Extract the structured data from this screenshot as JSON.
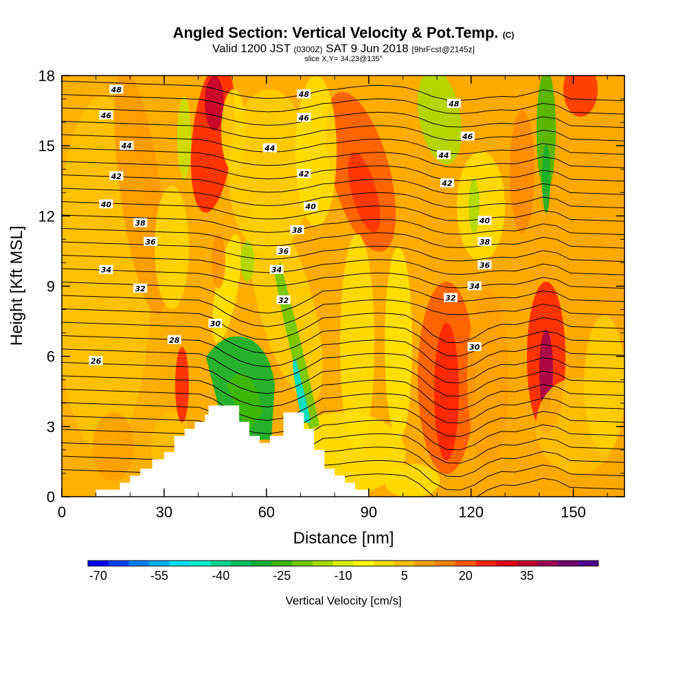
{
  "title": {
    "main": "Angled Section: Vertical Velocity & Pot.Temp.",
    "main_suffix": "(C)",
    "valid_prefix": "Valid 1200 JST",
    "valid_utc": "(0300Z)",
    "valid_date": "SAT 9 Jun 2018",
    "valid_fcst": "[9hrFcst@2145z]",
    "slice": "slice X,Y= 34,23@135°"
  },
  "chart_data": {
    "type": "contour-section",
    "xlabel": "Distance [nm]",
    "ylabel": "Height [Kft MSL]",
    "xlim": [
      0,
      165
    ],
    "ylim": [
      0,
      18
    ],
    "x_ticks": [
      0,
      30,
      60,
      90,
      120,
      150
    ],
    "x_tick_labels": [
      "0",
      "30",
      "60",
      "90",
      "120",
      "150"
    ],
    "y_ticks": [
      0,
      3,
      6,
      9,
      12,
      15,
      18
    ],
    "y_tick_labels": [
      "0",
      "3",
      "6",
      "9",
      "12",
      "15",
      "18"
    ],
    "terrain_kft": [
      [
        0,
        0
      ],
      [
        10,
        0
      ],
      [
        10,
        0.3
      ],
      [
        17,
        0.3
      ],
      [
        17,
        0.6
      ],
      [
        20,
        0.6
      ],
      [
        20,
        0.9
      ],
      [
        23,
        0.9
      ],
      [
        23,
        1.2
      ],
      [
        26.5,
        1.2
      ],
      [
        26.5,
        1.6
      ],
      [
        30,
        1.6
      ],
      [
        30,
        1.9
      ],
      [
        33,
        1.9
      ],
      [
        33,
        2.6
      ],
      [
        36,
        2.6
      ],
      [
        36,
        2.9
      ],
      [
        39,
        2.9
      ],
      [
        39,
        3.2
      ],
      [
        42,
        3.2
      ],
      [
        42,
        3.5
      ],
      [
        43,
        3.5
      ],
      [
        43,
        3.9
      ],
      [
        52,
        3.9
      ],
      [
        52,
        3.2
      ],
      [
        55,
        3.2
      ],
      [
        55,
        2.6
      ],
      [
        58,
        2.6
      ],
      [
        58,
        2.3
      ],
      [
        61,
        2.3
      ],
      [
        61,
        2.6
      ],
      [
        65,
        2.6
      ],
      [
        65,
        3.6
      ],
      [
        71,
        3.6
      ],
      [
        71,
        2.9
      ],
      [
        74,
        2.9
      ],
      [
        74,
        2.0
      ],
      [
        77,
        2.0
      ],
      [
        77,
        1.2
      ],
      [
        80,
        1.2
      ],
      [
        80,
        0.9
      ],
      [
        83,
        0.9
      ],
      [
        83,
        0.6
      ],
      [
        86,
        0.6
      ],
      [
        86,
        0.3
      ],
      [
        90,
        0.3
      ],
      [
        90,
        0
      ],
      [
        165,
        0
      ]
    ],
    "theta_contour_labels": [
      {
        "value": "48",
        "x": 16,
        "y": 17.4
      },
      {
        "value": "46",
        "x": 13,
        "y": 16.3
      },
      {
        "value": "44",
        "x": 19,
        "y": 15.0
      },
      {
        "value": "42",
        "x": 16,
        "y": 13.7
      },
      {
        "value": "40",
        "x": 13,
        "y": 12.5
      },
      {
        "value": "38",
        "x": 23,
        "y": 11.7
      },
      {
        "value": "36",
        "x": 26,
        "y": 10.9
      },
      {
        "value": "34",
        "x": 13,
        "y": 9.7
      },
      {
        "value": "32",
        "x": 23,
        "y": 8.9
      },
      {
        "value": "30",
        "x": 45,
        "y": 7.4
      },
      {
        "value": "28",
        "x": 33,
        "y": 6.7
      },
      {
        "value": "26",
        "x": 10,
        "y": 5.8
      },
      {
        "value": "48",
        "x": 71,
        "y": 17.2
      },
      {
        "value": "46",
        "x": 71,
        "y": 16.2
      },
      {
        "value": "44",
        "x": 61,
        "y": 14.9
      },
      {
        "value": "42",
        "x": 71,
        "y": 13.8
      },
      {
        "value": "40",
        "x": 73,
        "y": 12.4
      },
      {
        "value": "38",
        "x": 69,
        "y": 11.4
      },
      {
        "value": "36",
        "x": 65,
        "y": 10.5
      },
      {
        "value": "34",
        "x": 63,
        "y": 9.7
      },
      {
        "value": "32",
        "x": 65,
        "y": 8.4
      },
      {
        "value": "48",
        "x": 115,
        "y": 16.8
      },
      {
        "value": "46",
        "x": 119,
        "y": 15.4
      },
      {
        "value": "44",
        "x": 112,
        "y": 14.6
      },
      {
        "value": "42",
        "x": 113,
        "y": 13.4
      },
      {
        "value": "40",
        "x": 124,
        "y": 11.8
      },
      {
        "value": "38",
        "x": 124,
        "y": 10.9
      },
      {
        "value": "36",
        "x": 124,
        "y": 9.9
      },
      {
        "value": "34",
        "x": 121,
        "y": 9.0
      },
      {
        "value": "32",
        "x": 114,
        "y": 8.5
      },
      {
        "value": "30",
        "x": 121,
        "y": 6.4
      }
    ],
    "colorbar": {
      "title": "Vertical Velocity [cm/s]",
      "tick_labels": [
        "-70",
        "-55",
        "-40",
        "-25",
        "-10",
        "5",
        "20",
        "35"
      ],
      "colors": [
        "#0000ff",
        "#0040ff",
        "#0080ff",
        "#00b4ff",
        "#00e0ff",
        "#00f0c8",
        "#00d890",
        "#00c060",
        "#10b030",
        "#40b800",
        "#70c800",
        "#a8dc00",
        "#d8f000",
        "#ffff00",
        "#ffe000",
        "#ffc000",
        "#ffa000",
        "#ff8000",
        "#ff5800",
        "#ff2000",
        "#e00010",
        "#c00030",
        "#a00050",
        "#700070",
        "#500090"
      ]
    }
  }
}
